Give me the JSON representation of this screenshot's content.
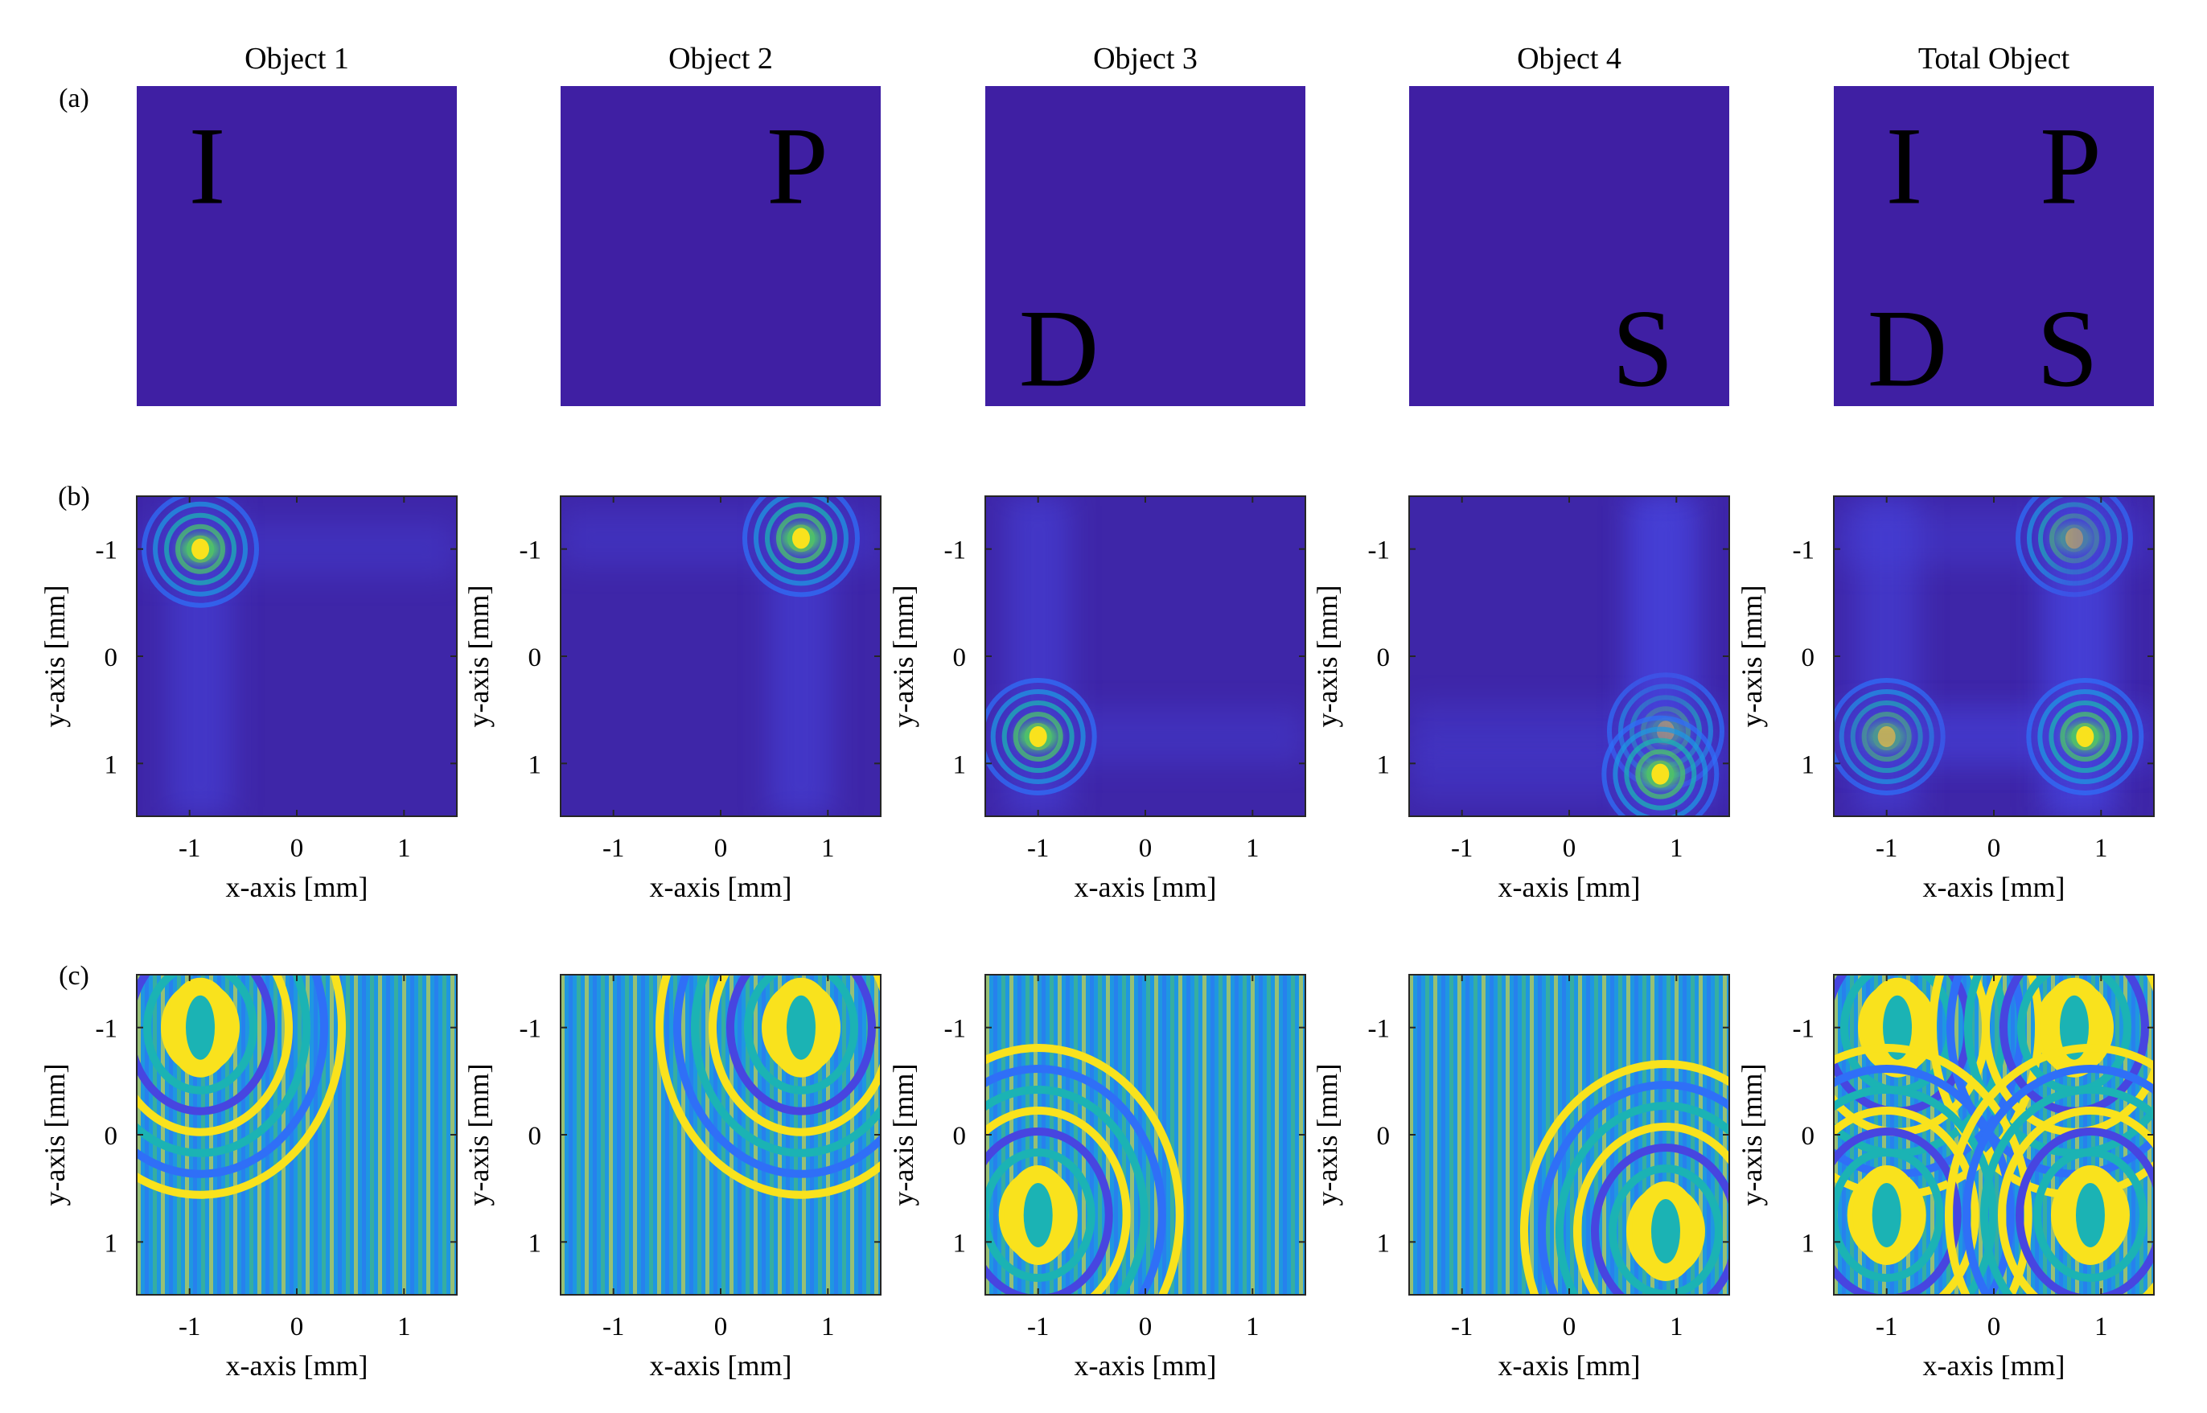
{
  "figure": {
    "row_labels": [
      "(a)",
      "(b)",
      "(c)"
    ],
    "column_titles": [
      "Object 1",
      "Object 2",
      "Object 3",
      "Object 4",
      "Total Object"
    ],
    "object_letters": [
      [
        "I"
      ],
      [
        "P"
      ],
      [
        "D"
      ],
      [
        "S"
      ],
      [
        "I",
        "P",
        "D",
        "S"
      ]
    ],
    "x_axis_label": "x-axis [mm]",
    "y_axis_label": "y-axis [mm]",
    "colors": {
      "background": "#3f1fa3",
      "letter": "#f5ec1e",
      "axis": "#262626",
      "colormap": [
        "#3e26a8",
        "#4745e0",
        "#2f6ff7",
        "#1e97e1",
        "#1bb3b4",
        "#4ac16d",
        "#a7bf30",
        "#f4ba3d",
        "#f9e21d"
      ]
    }
  },
  "chart_data": [
    {
      "type": "heatmap",
      "title": "Row (b)",
      "panels": [
        "Object 1",
        "Object 2",
        "Object 3",
        "Object 4",
        "Total Object"
      ],
      "xlabel": "x-axis [mm]",
      "ylabel": "y-axis [mm]",
      "xlim": [
        -1.5,
        1.5
      ],
      "ylim": [
        1.5,
        -1.5
      ],
      "xticks": [
        -1,
        0,
        1
      ],
      "yticks": [
        -1,
        0,
        1
      ],
      "hotspots_mm": [
        [
          [
            -0.9,
            -1.0
          ]
        ],
        [
          [
            0.75,
            -1.1
          ]
        ],
        [
          [
            -1.0,
            0.75
          ]
        ],
        [
          [
            0.9,
            0.7
          ],
          [
            0.85,
            1.1
          ]
        ],
        [
          [
            -1.0,
            0.75
          ],
          [
            0.75,
            -1.1
          ],
          [
            0.85,
            0.75
          ]
        ]
      ]
    },
    {
      "type": "heatmap",
      "title": "Row (c)",
      "panels": [
        "Object 1",
        "Object 2",
        "Object 3",
        "Object 4",
        "Total Object"
      ],
      "xlabel": "x-axis [mm]",
      "ylabel": "y-axis [mm]",
      "xlim": [
        -1.5,
        1.5
      ],
      "ylim": [
        1.5,
        -1.5
      ],
      "xticks": [
        -1,
        0,
        1
      ],
      "yticks": [
        -1,
        0,
        1
      ],
      "centers_mm": [
        [
          [
            -0.9,
            -1.0
          ]
        ],
        [
          [
            0.75,
            -1.0
          ]
        ],
        [
          [
            -1.0,
            0.75
          ]
        ],
        [
          [
            0.9,
            0.9
          ]
        ],
        [
          [
            -0.9,
            -1.0
          ],
          [
            0.75,
            -1.0
          ],
          [
            -1.0,
            0.75
          ],
          [
            0.9,
            0.75
          ]
        ]
      ]
    }
  ]
}
